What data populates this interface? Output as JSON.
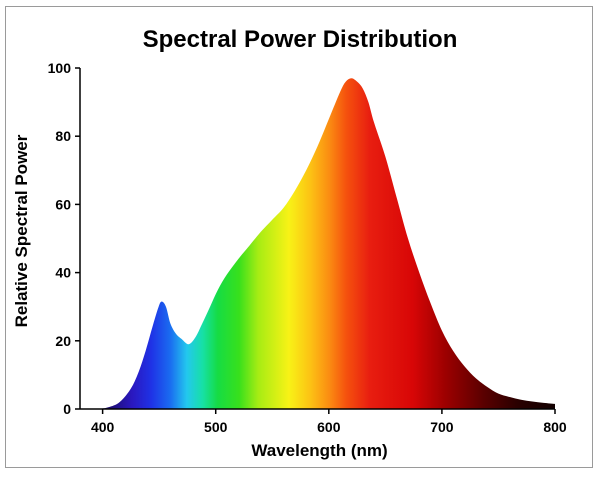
{
  "chart_data": {
    "type": "area",
    "title": "Spectral Power Distribution",
    "xlabel": "Wavelength (nm)",
    "ylabel": "Relative Spectral Power",
    "xlim": [
      380,
      800
    ],
    "ylim": [
      0,
      100
    ],
    "xticks": [
      400,
      500,
      600,
      700,
      800
    ],
    "yticks": [
      0,
      20,
      40,
      60,
      80,
      100
    ],
    "grid": false,
    "legend": "none",
    "fill": "visible spectrum gradient",
    "x": [
      380,
      395,
      405,
      415,
      425,
      432,
      438,
      444,
      449,
      452,
      456,
      460,
      465,
      470,
      476,
      482,
      488,
      495,
      502,
      510,
      520,
      530,
      540,
      550,
      560,
      570,
      580,
      590,
      600,
      610,
      615,
      620,
      625,
      630,
      635,
      640,
      650,
      660,
      670,
      680,
      690,
      700,
      710,
      720,
      730,
      740,
      750,
      760,
      770,
      780,
      790,
      800
    ],
    "y": [
      0,
      0,
      0.5,
      2,
      6,
      11,
      17,
      24,
      29.5,
      31.5,
      30,
      25,
      22,
      20.5,
      19,
      21,
      25,
      30,
      35,
      39.5,
      44,
      48,
      52,
      55.5,
      59,
      64,
      70,
      77,
      85,
      93,
      96,
      97,
      96,
      94,
      90,
      84,
      74,
      62,
      50,
      40,
      31,
      23,
      17,
      12.5,
      9,
      6.5,
      4.5,
      3.5,
      2.7,
      2.2,
      1.8,
      1.5
    ]
  }
}
